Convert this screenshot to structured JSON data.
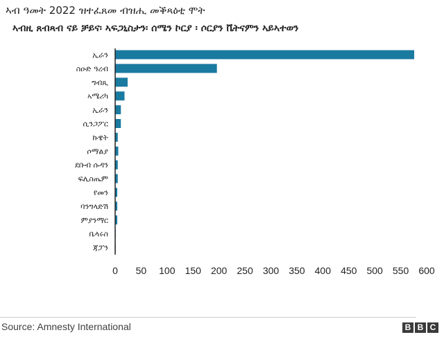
{
  "chart_data": {
    "type": "bar",
    "orientation": "horizontal",
    "title": "ኣብ ዓመት 2022 ዝተፈጸመ ብዝሒ መቕጻዕቲ ሞት",
    "subtitle": "ኣብዚ ጸብጻብ ናይ ቻይና፡ ኣፍጋኒስታን፡ ሰሜን ኮርያ ፡ ሶርያን ቬትናምን ኣይኣተወን",
    "categories": [
      "ኢራን",
      "ስዑድ ዓረብ",
      "ግብጺ",
      "ኣሜሪካ",
      "ኢራን",
      "ሲንጋፖር",
      "ኩዌት",
      "ሶማልያ",
      "ደቡብ ሱዳን",
      "ፍሊስጤም",
      "የመን",
      "ባንግላድሽ",
      "ምያንማር",
      "ቤላሩስ",
      "ጃፓን"
    ],
    "values": [
      576,
      196,
      24,
      18,
      11,
      11,
      5,
      6,
      5,
      5,
      4,
      4,
      4,
      1,
      1
    ],
    "xlim": [
      0,
      600
    ],
    "xticks": [
      "0",
      "50",
      "100",
      "150",
      "200",
      "250",
      "300",
      "350",
      "400",
      "450",
      "500",
      "550",
      "600"
    ],
    "grid": false,
    "bar_color": "#1a7aa0"
  },
  "source": "Source: Amnesty International",
  "logo": [
    "B",
    "B",
    "C"
  ]
}
